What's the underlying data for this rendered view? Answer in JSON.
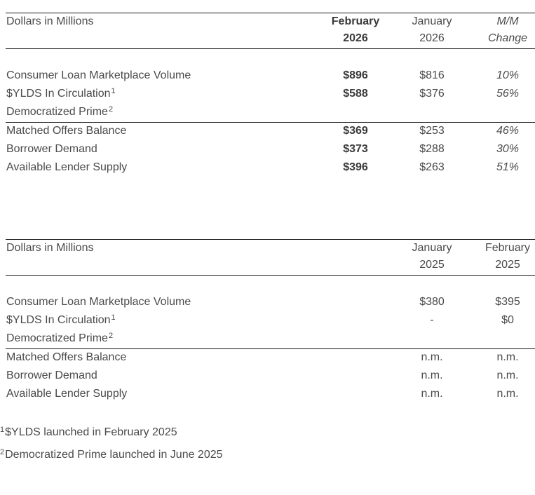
{
  "table1": {
    "header": {
      "label": "Dollars in Millions",
      "col1": [
        "February",
        "2026"
      ],
      "col2": [
        "January",
        "2026"
      ],
      "col3": [
        "M/M",
        "Change"
      ]
    },
    "rows": [
      {
        "label": "Consumer Loan Marketplace Volume",
        "sup": "",
        "v1": "$896",
        "v2": "$816",
        "v3": "10%"
      },
      {
        "label": "$YLDS In Circulation",
        "sup": "1",
        "v1": "$588",
        "v2": "$376",
        "v3": "56%"
      },
      {
        "label": "Democratized Prime",
        "sup": "2",
        "v1": "",
        "v2": "",
        "v3": ""
      },
      {
        "label": "Matched Offers Balance",
        "sup": "",
        "v1": "$369",
        "v2": "$253",
        "v3": "46%"
      },
      {
        "label": "Borrower Demand",
        "sup": "",
        "v1": "$373",
        "v2": "$288",
        "v3": "30%"
      },
      {
        "label": "Available Lender Supply",
        "sup": "",
        "v1": "$396",
        "v2": "$263",
        "v3": "51%"
      }
    ]
  },
  "table2": {
    "header": {
      "label": "Dollars in Millions",
      "col1": [
        "January",
        "2025"
      ],
      "col2": [
        "February",
        "2025"
      ]
    },
    "rows": [
      {
        "label": "Consumer Loan Marketplace Volume",
        "sup": "",
        "v1": "$380",
        "v2": "$395"
      },
      {
        "label": "$YLDS In Circulation",
        "sup": "1",
        "v1": "-",
        "v2": "$0"
      },
      {
        "label": "Democratized Prime",
        "sup": "2",
        "v1": "",
        "v2": ""
      },
      {
        "label": "Matched Offers Balance",
        "sup": "",
        "v1": "n.m.",
        "v2": "n.m."
      },
      {
        "label": "Borrower Demand",
        "sup": "",
        "v1": "n.m.",
        "v2": "n.m."
      },
      {
        "label": "Available Lender Supply",
        "sup": "",
        "v1": "n.m.",
        "v2": "n.m."
      }
    ]
  },
  "footnotes": [
    {
      "mark": "1",
      "text": "$YLDS launched in February 2025"
    },
    {
      "mark": "2",
      "text": "Democratized Prime launched in June 2025"
    }
  ]
}
